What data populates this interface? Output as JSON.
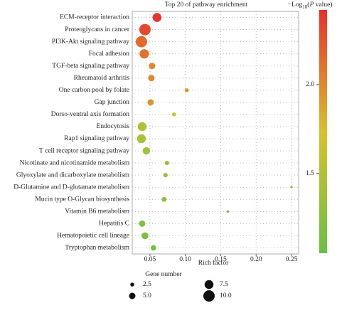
{
  "chart_data": {
    "type": "bubble",
    "title": "Top 20 of pathway enrichment",
    "x_label": "Rich factor",
    "categories": [
      "ECM-receptor interaction",
      "Proteoglycans in cancer",
      "PI3K-Akt signaling pathway",
      "Focal adhesion",
      "TGF-beta signaling pathway",
      "Rheumatoid arthritis",
      "One carbon pool by folate",
      "Gap junction",
      "Dorso-ventral axis formation",
      "Endocytosis",
      "Rap1 signaling pathway",
      "T cell receptor signaling pathway",
      "Nicotinate and nicotinamide metabolism",
      "Glyoxylate and dicarboxylate metabolism",
      "D-Glutamine and D-glutamate metabolism",
      "Mucin type O-Glycan biosynthesis",
      "Vitamin B6 metabolism",
      "Hepatitis C",
      "Hematopoietic cell lineage",
      "Tryptophan metabolism"
    ],
    "rich_factor": [
      0.06,
      0.043,
      0.038,
      0.042,
      0.053,
      0.052,
      0.102,
      0.051,
      0.084,
      0.039,
      0.038,
      0.045,
      0.074,
      0.072,
      0.25,
      0.07,
      0.16,
      0.039,
      0.043,
      0.055
    ],
    "gene_number": [
      7.5,
      10,
      10,
      8,
      5,
      5,
      2.5,
      5,
      2.5,
      7.5,
      7.5,
      6,
      3,
      3,
      1,
      3.5,
      1,
      5,
      5.5,
      4
    ],
    "neg_log10_p": [
      2.4,
      2.3,
      2.15,
      2.1,
      2.0,
      2.0,
      1.95,
      1.95,
      1.65,
      1.5,
      1.45,
      1.4,
      1.35,
      1.35,
      1.3,
      1.3,
      1.2,
      1.2,
      1.15,
      1.1
    ],
    "xlim": [
      0.025,
      0.26
    ],
    "xticks": [
      0.05,
      {
        "value": 0.1,
        "label": "0.10"
      },
      0.15,
      {
        "value": 0.2,
        "label": "0.20"
      },
      0.25
    ],
    "grid": true,
    "colorbar": {
      "label_prefix": "−Log",
      "label_sub": "10",
      "label_open": "(",
      "label_italic": "P",
      "label_suffix": " value)",
      "lim": [
        1.05,
        2.42
      ],
      "ticks": [
        1.5,
        {
          "value": 2.0,
          "label": "2.0"
        }
      ],
      "colors": [
        "#6abf45",
        "#d8c02e",
        "#e8302a"
      ]
    },
    "size_legend": {
      "title": "Gene number",
      "values": [
        {
          "value": 2.5,
          "label": "2.5"
        },
        {
          "value": 5,
          "label": "5.0"
        },
        {
          "value": 7.5,
          "label": "7.5"
        },
        {
          "value": 10,
          "label": "10.0"
        }
      ]
    }
  }
}
